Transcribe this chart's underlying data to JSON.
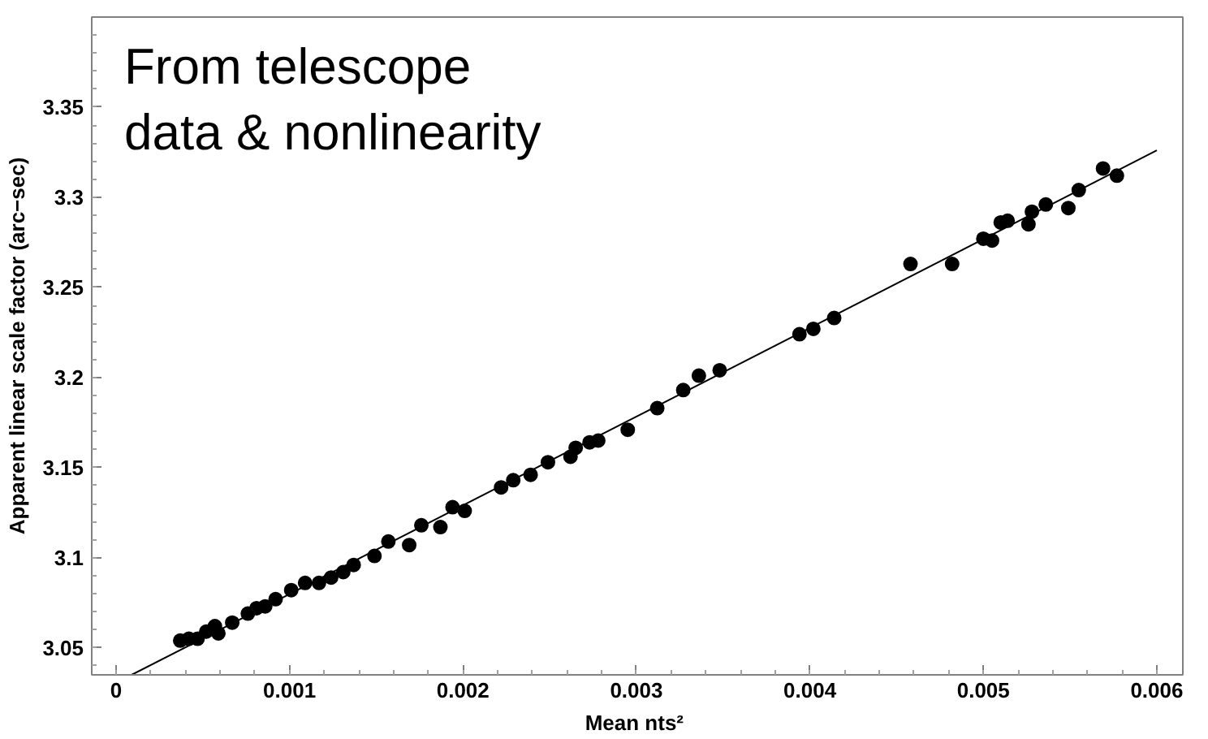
{
  "chart_data": {
    "type": "scatter",
    "xlabel": "Mean  nts²",
    "ylabel": "Apparent linear scale factor (arc−sec)",
    "annotations": [
      "From telescope\ndata & nonlinearity"
    ],
    "xlim": [
      -0.00014,
      0.00615
    ],
    "ylim": [
      3.035,
      3.4
    ],
    "xticks": [
      0,
      0.001,
      0.002,
      0.003,
      0.004,
      0.005,
      0.006
    ],
    "yticks": [
      3.05,
      3.1,
      3.15,
      3.2,
      3.25,
      3.3,
      3.35
    ],
    "grid": false,
    "series": [
      {
        "color": "#000000",
        "marker": "circle",
        "x": [
          0.00037,
          0.00042,
          0.00047,
          0.00052,
          0.00057,
          0.00059,
          0.00067,
          0.00076,
          0.00081,
          0.00086,
          0.00092,
          0.00101,
          0.00109,
          0.00117,
          0.00124,
          0.00131,
          0.00137,
          0.00149,
          0.00157,
          0.00169,
          0.00176,
          0.00187,
          0.00194,
          0.00201,
          0.00222,
          0.00229,
          0.00239,
          0.00249,
          0.00262,
          0.00265,
          0.00273,
          0.00278,
          0.00295,
          0.00312,
          0.00327,
          0.00336,
          0.00348,
          0.00394,
          0.00402,
          0.00414,
          0.00458,
          0.00482,
          0.005,
          0.00505,
          0.0051,
          0.00514,
          0.00526,
          0.00528,
          0.00536,
          0.00549,
          0.00555,
          0.00569,
          0.00577
        ],
        "values": [
          3.054,
          3.055,
          3.055,
          3.059,
          3.062,
          3.058,
          3.064,
          3.069,
          3.072,
          3.073,
          3.077,
          3.082,
          3.086,
          3.086,
          3.089,
          3.092,
          3.096,
          3.101,
          3.109,
          3.107,
          3.118,
          3.117,
          3.128,
          3.126,
          3.139,
          3.143,
          3.146,
          3.153,
          3.156,
          3.161,
          3.164,
          3.165,
          3.171,
          3.183,
          3.193,
          3.201,
          3.204,
          3.224,
          3.227,
          3.233,
          3.263,
          3.263,
          3.277,
          3.276,
          3.286,
          3.287,
          3.285,
          3.292,
          3.296,
          3.294,
          3.304,
          3.316,
          3.312
        ]
      },
      {
        "type": "line",
        "color": "#000000",
        "x": [
          9e-05,
          0.006
        ],
        "values": [
          3.035,
          3.326
        ],
        "marker": "none",
        "line_style": "solid"
      }
    ]
  }
}
